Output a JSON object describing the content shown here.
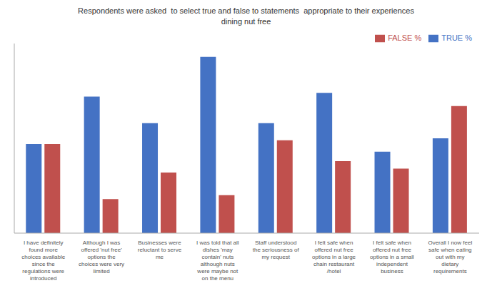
{
  "chart_data": {
    "type": "bar",
    "title": "Respondents were asked  to select true and false to statements  appropriate to their experiences\ndining nut free",
    "categories": [
      "I have definitely\nfound more\nchoices available\nsince the\nregulations were\nintroduced",
      "Although I was\noffered 'nut free'\noptions the\nchoices were very\nlimited",
      "Businesses were\nreluctant to serve\nme",
      "I was told that all\ndishes 'may\ncontain' nuts\nalthough nuts\nwere maybe not\non the menu",
      "Staff understood\nthe seriousness of\nmy request",
      "I felt safe when\noffered nut free\noptions in a large\nchain restaurant\n/hotel",
      "I felt safe when\noffered nut free\noptions in a small\nindependent\nbusiness",
      "Overall I now feel\nsafe when eating\nout with my\ndietary\nrequirements"
    ],
    "series": [
      {
        "name": "TRUE %",
        "color": "#4472C4",
        "values": [
          47,
          72,
          58,
          93,
          58,
          74,
          43,
          50
        ]
      },
      {
        "name": "FALSE %",
        "color": "#C0504D",
        "values": [
          47,
          18,
          32,
          20,
          49,
          38,
          34,
          67
        ]
      }
    ],
    "ylim": [
      0,
      100
    ],
    "grid": false,
    "legend": "upper right",
    "tick_labels": "x"
  }
}
